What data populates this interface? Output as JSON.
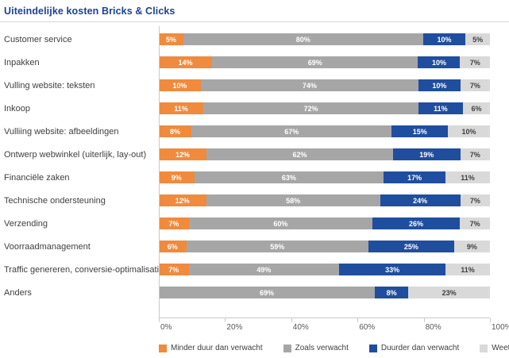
{
  "title": "Uiteindelijke kosten Bricks & Clicks",
  "colors": {
    "title_blue": "#1b4193",
    "axis_gray": "#c9c9c9",
    "label_text": "#3f3f3f"
  },
  "chart_data": {
    "type": "bar",
    "stacked": true,
    "orientation": "horizontal",
    "title": "Uiteindelijke kosten Bricks & Clicks",
    "xlim": [
      0,
      100
    ],
    "x_ticks": [
      "0%",
      "20%",
      "40%",
      "60%",
      "80%",
      "100%"
    ],
    "value_suffix": "%",
    "grid": false,
    "legend_position": "bottom",
    "categories": [
      "Customer service",
      "Inpakken",
      "Vulling website: teksten",
      "Inkoop",
      "Vulliing website: afbeeldingen",
      "Ontwerp webwinkel (uiterlijk, lay-out)",
      "Financiële zaken",
      "Technische ondersteuning",
      "Verzending",
      "Voorraadmanagement",
      "Traffic genereren, conversie-optimalisatie",
      "Anders"
    ],
    "series": [
      {
        "name": "Minder duur dan verwacht",
        "color": "#f08a3c",
        "label_color": "#ffffff",
        "values": [
          5,
          14,
          10,
          11,
          8,
          12,
          9,
          12,
          7,
          6,
          7,
          0
        ]
      },
      {
        "name": "Zoals verwacht",
        "color": "#a6a6a6",
        "label_color": "#ffffff",
        "values": [
          80,
          69,
          74,
          72,
          67,
          62,
          63,
          58,
          60,
          59,
          49,
          69
        ]
      },
      {
        "name": "Duurder dan verwacht",
        "color": "#1f4e9e",
        "label_color": "#ffffff",
        "values": [
          10,
          10,
          10,
          11,
          15,
          19,
          17,
          24,
          26,
          25,
          33,
          8
        ]
      },
      {
        "name": "Weet niet",
        "color": "#d9d9d9",
        "label_color": "#404040",
        "values": [
          5,
          7,
          7,
          6,
          10,
          7,
          11,
          7,
          7,
          9,
          11,
          23
        ]
      }
    ]
  }
}
